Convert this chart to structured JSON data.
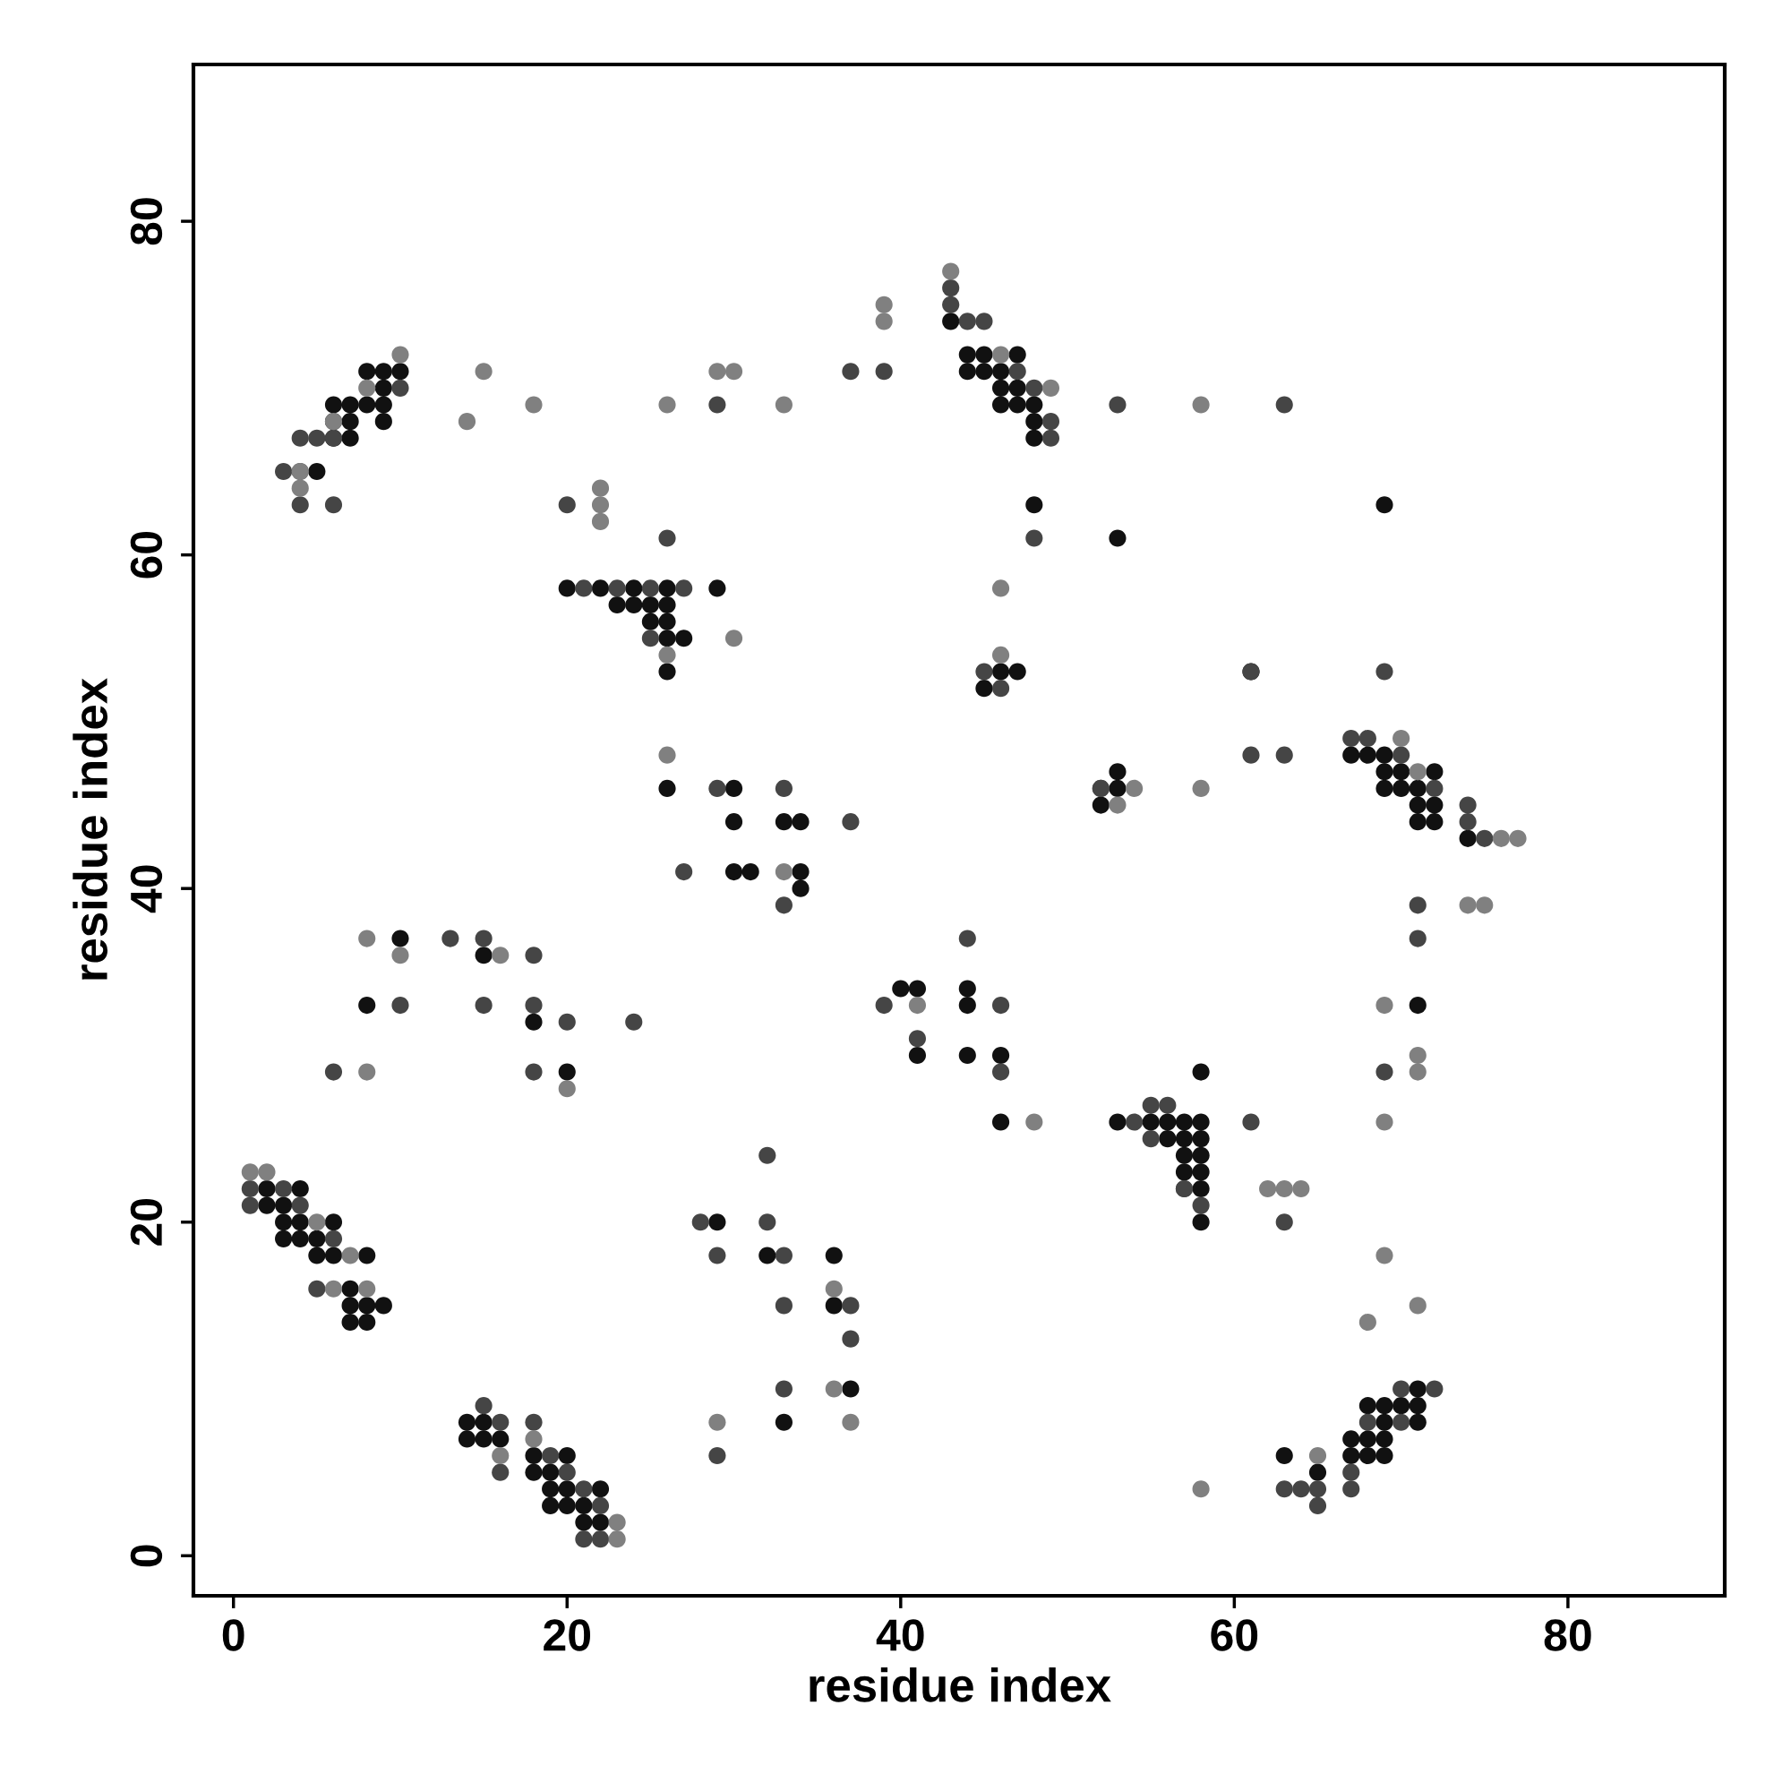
{
  "chart_data": {
    "type": "scatter",
    "xlabel": "residue index",
    "ylabel": "residue index",
    "xlim": [
      -2.4,
      89.4
    ],
    "ylim": [
      -2.4,
      89.4
    ],
    "xticks": [
      0,
      20,
      40,
      60,
      80
    ],
    "yticks": [
      0,
      20,
      40,
      60,
      80
    ],
    "grid": false,
    "marker": "circle",
    "series": [
      {
        "color": "#111111",
        "x": [
          8,
          9,
          10,
          9,
          6,
          7,
          8,
          9,
          6,
          7,
          9,
          6,
          7,
          5,
          20,
          22,
          24,
          26,
          29,
          23,
          24,
          25,
          26,
          25,
          26,
          26,
          27,
          26,
          43,
          44,
          45,
          47,
          44,
          45,
          46,
          46,
          47,
          46,
          47,
          48,
          48,
          48,
          48,
          53,
          46,
          47,
          45,
          61,
          69,
          67,
          68,
          69,
          69,
          70,
          72,
          69,
          70,
          71,
          71,
          72,
          71,
          72,
          74,
          71,
          53,
          53,
          52,
          26,
          30,
          30,
          33,
          34,
          30,
          31,
          34,
          34,
          10,
          15,
          8,
          18,
          20,
          40,
          41,
          41,
          44,
          44,
          44,
          46,
          46,
          58,
          53,
          55,
          56,
          57,
          58,
          56,
          57,
          58,
          57,
          58,
          57,
          58,
          58,
          58,
          2,
          4,
          2,
          3,
          3,
          4,
          6,
          3,
          4,
          5,
          5,
          6,
          8,
          7,
          7,
          8,
          9,
          7,
          8,
          29,
          32,
          36,
          36,
          37,
          33,
          14,
          15,
          14,
          15,
          16,
          18,
          20,
          18,
          19,
          19,
          20,
          22,
          19,
          20,
          21,
          21,
          22,
          71,
          68,
          69,
          70,
          71,
          69,
          71,
          67,
          68,
          69,
          63,
          67,
          68,
          69,
          65
        ],
        "values": [
          71,
          71,
          71,
          70,
          69,
          69,
          69,
          69,
          68,
          68,
          68,
          67,
          67,
          65,
          58,
          58,
          58,
          58,
          58,
          57,
          57,
          57,
          57,
          56,
          56,
          55,
          55,
          53,
          74,
          72,
          72,
          72,
          71,
          71,
          71,
          70,
          70,
          69,
          69,
          69,
          68,
          67,
          63,
          61,
          53,
          53,
          52,
          53,
          63,
          48,
          48,
          48,
          47,
          47,
          47,
          46,
          46,
          46,
          45,
          45,
          44,
          44,
          43,
          33,
          47,
          46,
          45,
          46,
          46,
          44,
          44,
          44,
          41,
          41,
          41,
          40,
          37,
          36,
          33,
          32,
          29,
          34,
          34,
          30,
          34,
          33,
          30,
          30,
          26,
          29,
          26,
          26,
          26,
          26,
          26,
          25,
          25,
          25,
          24,
          24,
          23,
          23,
          22,
          20,
          22,
          22,
          21,
          21,
          20,
          20,
          20,
          19,
          19,
          19,
          18,
          18,
          18,
          16,
          15,
          15,
          15,
          14,
          14,
          20,
          18,
          18,
          15,
          10,
          8,
          8,
          8,
          7,
          7,
          7,
          6,
          6,
          5,
          5,
          4,
          4,
          4,
          3,
          3,
          3,
          2,
          2,
          10,
          9,
          9,
          9,
          9,
          8,
          8,
          7,
          7,
          7,
          6,
          6,
          6,
          6,
          5
        ]
      },
      {
        "color": "#454545",
        "x": [
          10,
          3,
          4,
          4,
          5,
          6,
          4,
          6,
          20,
          29,
          37,
          39,
          26,
          21,
          23,
          25,
          27,
          25,
          43,
          43,
          44,
          45,
          47,
          48,
          49,
          49,
          48,
          53,
          63,
          45,
          46,
          61,
          61,
          63,
          69,
          67,
          68,
          70,
          72,
          74,
          74,
          75,
          71,
          71,
          69,
          52,
          52,
          27,
          29,
          33,
          37,
          33,
          13,
          15,
          18,
          10,
          15,
          18,
          20,
          24,
          6,
          18,
          39,
          41,
          44,
          46,
          46,
          55,
          56,
          54,
          61,
          55,
          57,
          57,
          58,
          63,
          1,
          3,
          1,
          4,
          6,
          5,
          28,
          29,
          32,
          32,
          33,
          33,
          37,
          37,
          33,
          29,
          15,
          16,
          18,
          19,
          20,
          16,
          21,
          22,
          21,
          22,
          70,
          72,
          68,
          70,
          67,
          63,
          64,
          65,
          67,
          65
        ],
        "values": [
          70,
          65,
          65,
          67,
          67,
          67,
          63,
          63,
          63,
          69,
          71,
          71,
          61,
          58,
          58,
          58,
          58,
          55,
          76,
          75,
          74,
          74,
          71,
          70,
          68,
          67,
          61,
          69,
          69,
          53,
          52,
          53,
          48,
          48,
          53,
          49,
          49,
          48,
          46,
          45,
          44,
          43,
          39,
          37,
          29,
          46,
          46,
          41,
          46,
          46,
          44,
          39,
          37,
          37,
          36,
          33,
          33,
          33,
          32,
          32,
          29,
          29,
          33,
          31,
          37,
          33,
          29,
          27,
          27,
          26,
          26,
          25,
          22,
          22,
          21,
          20,
          22,
          22,
          21,
          21,
          19,
          16,
          20,
          18,
          24,
          20,
          18,
          15,
          15,
          13,
          10,
          6,
          9,
          8,
          8,
          6,
          5,
          5,
          4,
          3,
          1,
          1,
          10,
          10,
          8,
          8,
          5,
          4,
          4,
          4,
          4,
          3
        ]
      },
      {
        "color": "#808080",
        "x": [
          10,
          8,
          6,
          4,
          4,
          14,
          15,
          18,
          22,
          22,
          22,
          26,
          29,
          30,
          33,
          30,
          26,
          39,
          39,
          43,
          46,
          49,
          58,
          46,
          46,
          70,
          71,
          76,
          77,
          74,
          75,
          69,
          71,
          71,
          69,
          54,
          53,
          58,
          26,
          33,
          8,
          10,
          16,
          8,
          20,
          41,
          48,
          62,
          63,
          64,
          1,
          2,
          5,
          7,
          6,
          8,
          36,
          36,
          37,
          29,
          23,
          23,
          18,
          16,
          69,
          71,
          68,
          65,
          58
        ],
        "values": [
          72,
          70,
          68,
          65,
          64,
          68,
          71,
          69,
          64,
          63,
          62,
          69,
          71,
          71,
          69,
          55,
          54,
          75,
          74,
          77,
          72,
          70,
          69,
          58,
          54,
          49,
          47,
          43,
          43,
          39,
          39,
          33,
          30,
          29,
          26,
          46,
          45,
          46,
          48,
          41,
          37,
          36,
          36,
          29,
          28,
          33,
          26,
          22,
          22,
          22,
          23,
          23,
          20,
          18,
          16,
          16,
          16,
          10,
          8,
          8,
          2,
          1,
          7,
          6,
          18,
          15,
          14,
          6,
          4
        ]
      }
    ]
  }
}
